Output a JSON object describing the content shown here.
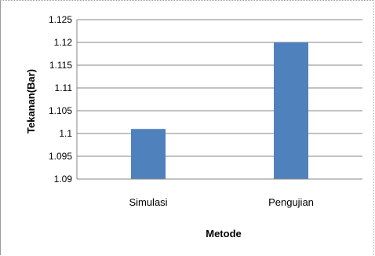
{
  "chart_data": {
    "type": "bar",
    "categories": [
      "Simulasi",
      "Pengujian"
    ],
    "values": [
      1.101,
      1.12
    ],
    "xlabel": "Metode",
    "ylabel": "Tekanan(Bar)",
    "ylim": [
      1.09,
      1.125
    ],
    "yticks": [
      "1.09",
      "1.095",
      "1.1",
      "1.105",
      "1.11",
      "1.115",
      "1.12",
      "1.125"
    ],
    "grid": true,
    "bar_color": "#4f81bd",
    "legend": "none"
  }
}
